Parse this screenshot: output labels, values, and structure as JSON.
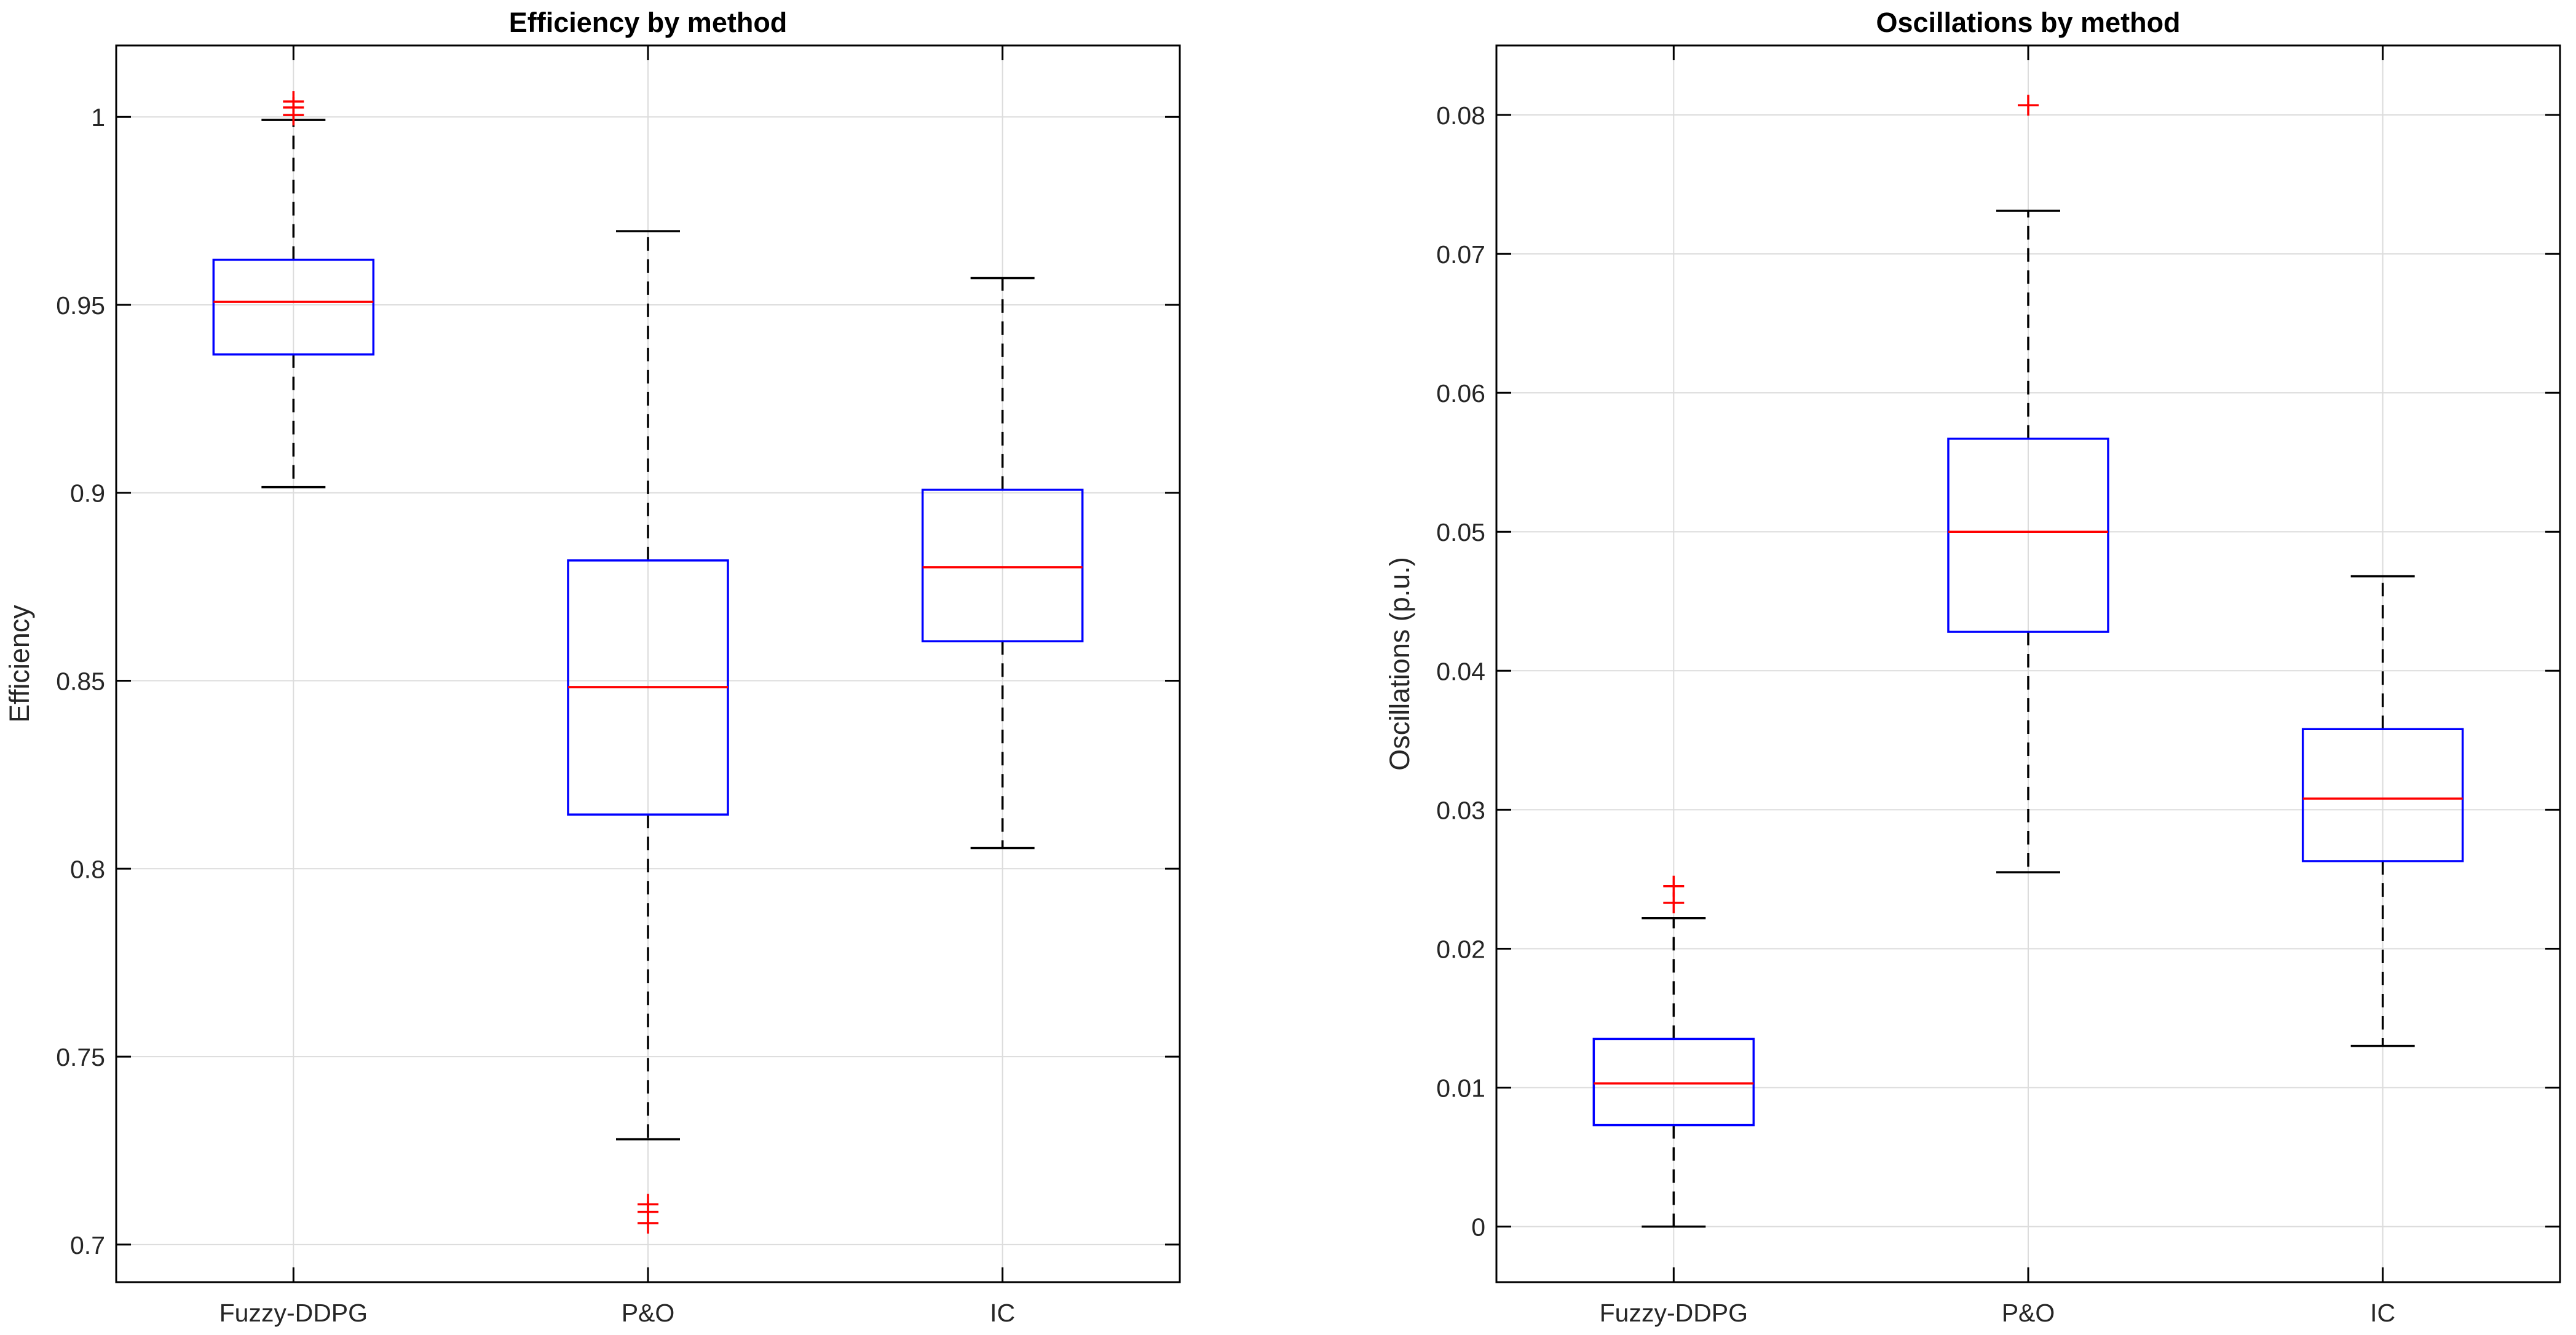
{
  "chart_data": [
    {
      "type": "boxplot",
      "title": "Efficiency by method",
      "xlabel": "",
      "ylabel": "Efficiency",
      "ylim": [
        0.69,
        1.019
      ],
      "yticks": [
        0.7,
        0.75,
        0.8,
        0.85,
        0.9,
        0.95,
        1
      ],
      "ytick_labels": [
        "0.7",
        "0.75",
        "0.8",
        "0.85",
        "0.9",
        "0.95",
        "1"
      ],
      "grid": true,
      "categories": [
        "Fuzzy-DDPG",
        "P&O",
        "IC"
      ],
      "boxes": [
        {
          "whisker_low": 0.9015,
          "q1": 0.9368,
          "median": 0.9508,
          "q3": 0.962,
          "whisker_high": 0.9992,
          "outliers": [
            1.0005,
            1.0025,
            1.0041
          ]
        },
        {
          "whisker_low": 0.728,
          "q1": 0.8144,
          "median": 0.8483,
          "q3": 0.882,
          "whisker_high": 0.9696,
          "outliers": [
            0.7057,
            0.7087,
            0.7107
          ]
        },
        {
          "whisker_low": 0.8055,
          "q1": 0.8605,
          "median": 0.8802,
          "q3": 0.9008,
          "whisker_high": 0.9571,
          "outliers": []
        }
      ]
    },
    {
      "type": "boxplot",
      "title": "Oscillations by method",
      "xlabel": "",
      "ylabel": "Oscillations (p.u.)",
      "ylim": [
        -0.004,
        0.085
      ],
      "yticks": [
        0,
        0.01,
        0.02,
        0.03,
        0.04,
        0.05,
        0.06,
        0.07,
        0.08
      ],
      "ytick_labels": [
        "0",
        "0.01",
        "0.02",
        "0.03",
        "0.04",
        "0.05",
        "0.06",
        "0.07",
        "0.08"
      ],
      "grid": true,
      "categories": [
        "Fuzzy-DDPG",
        "P&O",
        "IC"
      ],
      "boxes": [
        {
          "whisker_low": 0.0,
          "q1": 0.0073,
          "median": 0.0103,
          "q3": 0.0135,
          "whisker_high": 0.0222,
          "outliers": [
            0.0233,
            0.0245
          ]
        },
        {
          "whisker_low": 0.0255,
          "q1": 0.0428,
          "median": 0.05,
          "q3": 0.0567,
          "whisker_high": 0.0731,
          "outliers": [
            0.0807
          ]
        },
        {
          "whisker_low": 0.013,
          "q1": 0.0263,
          "median": 0.0308,
          "q3": 0.0358,
          "whisker_high": 0.0468,
          "outliers": []
        }
      ]
    }
  ],
  "colors": {
    "box": "#0000ff",
    "median": "#ff0000",
    "whisker": "#000000",
    "outlier": "#ff0000",
    "grid": "#dcdcdc",
    "axes": "#000000"
  }
}
